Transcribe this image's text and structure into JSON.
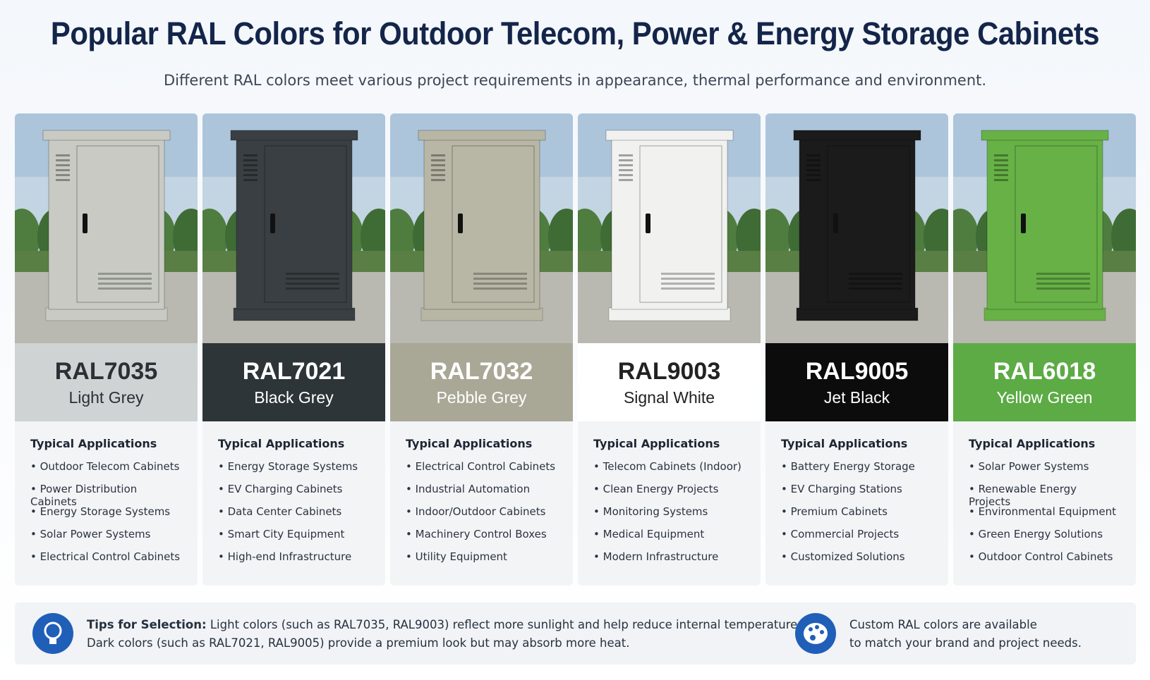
{
  "header": {
    "title": "Popular RAL Colors for Outdoor Telecom, Power & Energy Storage Cabinets",
    "subtitle": "Different RAL colors meet various project requirements in appearance, thermal performance and environment."
  },
  "cards": [
    {
      "code": "RAL7035",
      "name": "Light Grey",
      "heading": "Typical Applications",
      "items": [
        "Outdoor Telecom Cabinets",
        "Power Distribution Cabinets",
        "Energy Storage Systems",
        "Solar Power Systems",
        "Electrical Control Cabinets"
      ]
    },
    {
      "code": "RAL7021",
      "name": "Black Grey",
      "heading": "Typical Applications",
      "items": [
        "Energy Storage Systems",
        "EV Charging Cabinets",
        "Data Center Cabinets",
        "Smart City Equipment",
        "High-end Infrastructure"
      ]
    },
    {
      "code": "RAL7032",
      "name": "Pebble Grey",
      "heading": "Typical Applications",
      "items": [
        "Electrical Control Cabinets",
        "Industrial Automation",
        "Indoor/Outdoor Cabinets",
        "Machinery Control Boxes",
        "Utility Equipment"
      ]
    },
    {
      "code": "RAL9003",
      "name": "Signal White",
      "heading": "Typical Applications",
      "items": [
        "Telecom Cabinets (Indoor)",
        "Clean Energy Projects",
        "Monitoring Systems",
        "Medical Equipment",
        "Modern Infrastructure"
      ]
    },
    {
      "code": "RAL9005",
      "name": "Jet Black",
      "heading": "Typical Applications",
      "items": [
        "Battery Energy Storage",
        "EV Charging Stations",
        "Premium Cabinets",
        "Commercial Projects",
        "Customized Solutions"
      ]
    },
    {
      "code": "RAL6018",
      "name": "Yellow Green",
      "heading": "Typical Applications",
      "items": [
        "Solar Power Systems",
        "Renewable Energy Projects",
        "Environmental Equipment",
        "Green Energy Solutions",
        "Outdoor Control Cabinets"
      ]
    }
  ],
  "tips": {
    "label": "Tips for Selection:",
    "lines": [
      "Light colors (such as RAL7035, RAL9003) reflect more sunlight and help reduce internal temperature.",
      "Dark colors (such as RAL7021, RAL9005) provide a premium look but may absorb more heat."
    ]
  },
  "custom": {
    "lines": [
      "Custom RAL colors are available",
      "to match your brand and project needs."
    ]
  }
}
